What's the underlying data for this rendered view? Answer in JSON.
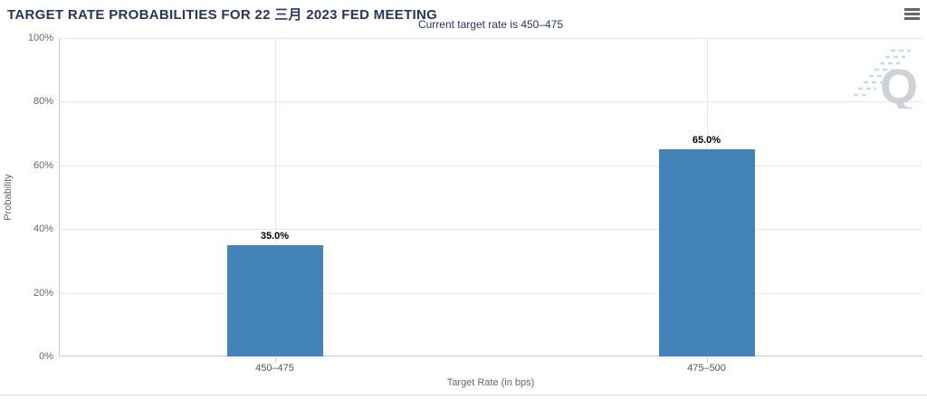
{
  "header": {
    "title": "TARGET RATE PROBABILITIES FOR 22 三月 2023 FED MEETING",
    "menu_icon": "hamburger-menu-icon"
  },
  "watermark": {
    "letter": "Q"
  },
  "chart_data": {
    "type": "bar",
    "title": "TARGET RATE PROBABILITIES FOR 22 三月 2023 FED MEETING",
    "subtitle": "Current target rate is 450–475",
    "categories": [
      "450–475",
      "475–500"
    ],
    "values": [
      35.0,
      65.0
    ],
    "data_labels": [
      "35.0%",
      "65.0%"
    ],
    "xlabel": "Target Rate (in bps)",
    "ylabel": "Probability",
    "ylim": [
      0,
      100
    ],
    "yticks": [
      0,
      20,
      40,
      60,
      80,
      100
    ],
    "ytick_labels": [
      "0%",
      "20%",
      "40%",
      "60%",
      "80%",
      "100%"
    ],
    "grid": true,
    "legend": "none",
    "bar_color": "#4383BA",
    "colors": {
      "title_navy": "#26355E",
      "bar": "#4383BA",
      "grid": "#E7E7E7",
      "axis_line": "#CBCBCB",
      "tick_label": "#666666",
      "data_label": "#000000",
      "watermark_q": "#C9CDD2",
      "watermark_dash": "#BCD8EB"
    }
  }
}
